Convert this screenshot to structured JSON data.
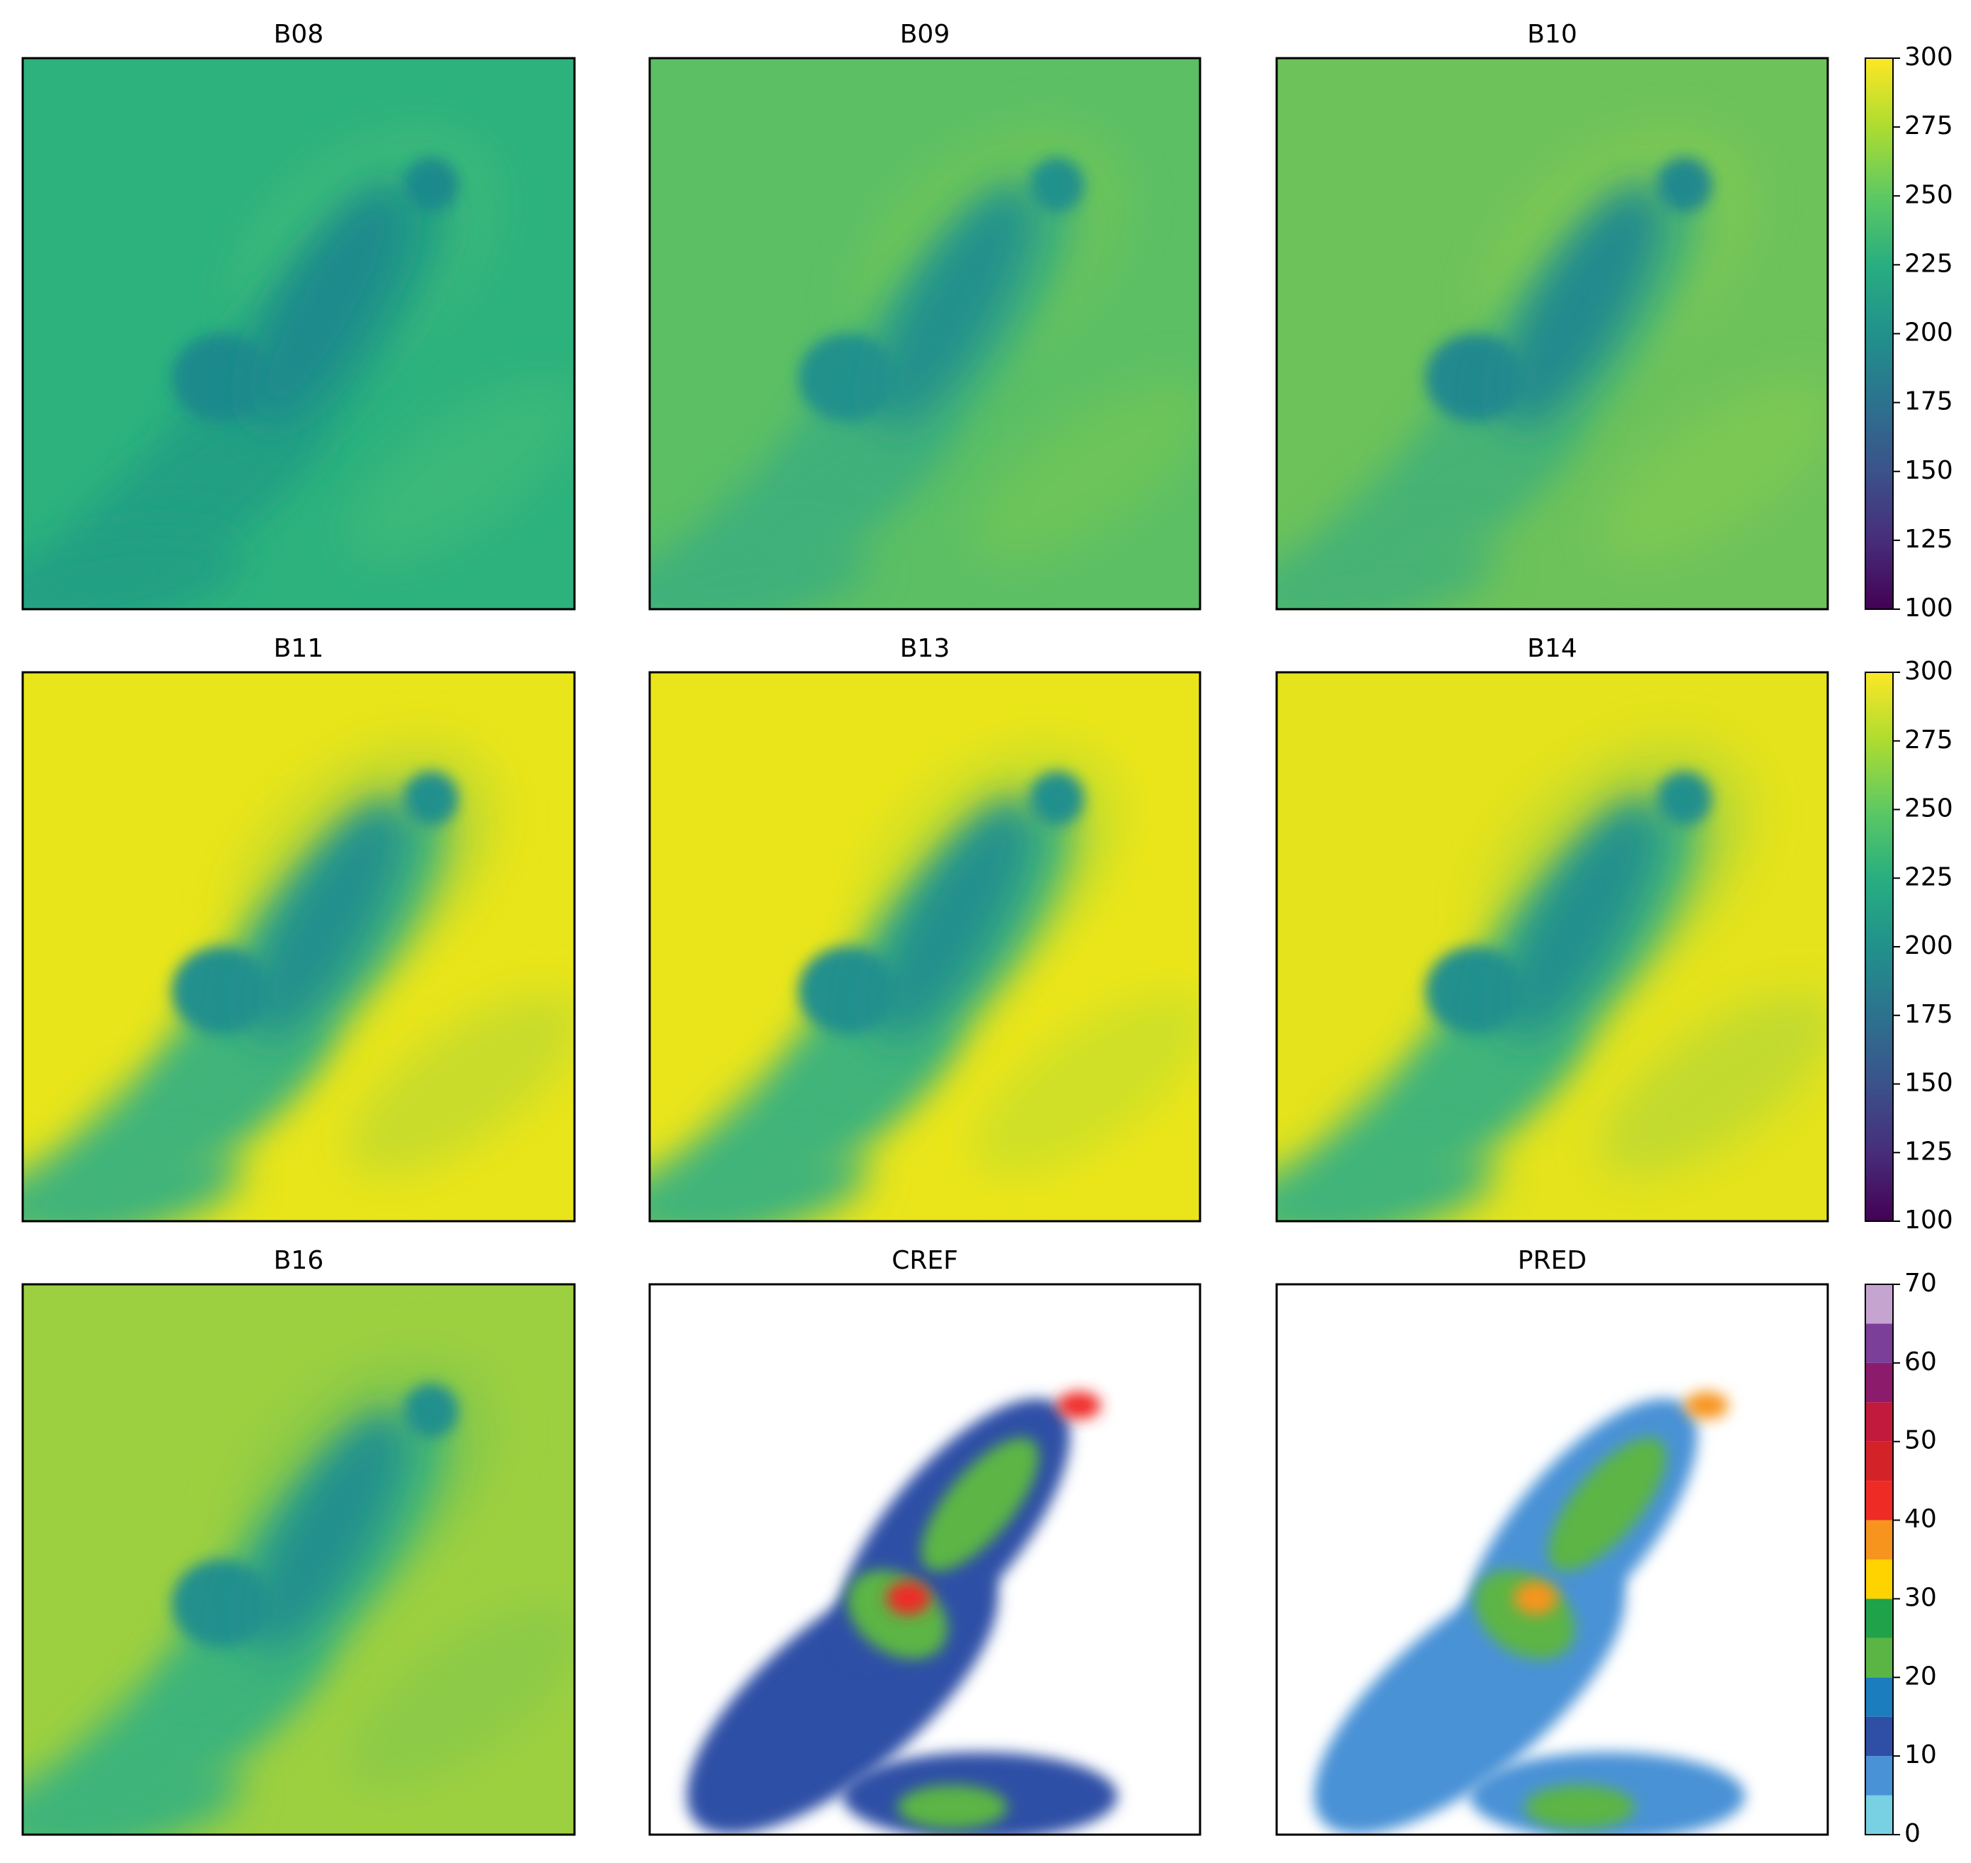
{
  "chart_data": [
    {
      "type": "image",
      "title": "B08"
    },
    {
      "type": "image",
      "title": "B09"
    },
    {
      "type": "image",
      "title": "B10"
    },
    {
      "type": "image",
      "title": "B11"
    },
    {
      "type": "image",
      "title": "B13"
    },
    {
      "type": "image",
      "title": "B14"
    },
    {
      "type": "image",
      "title": "B16"
    },
    {
      "type": "image",
      "title": "CREF"
    },
    {
      "type": "image",
      "title": "PRED"
    },
    {
      "type": "colorbar",
      "ylim": [
        100,
        300
      ],
      "yticks": [
        100,
        125,
        150,
        175,
        200,
        225,
        250,
        275,
        300
      ],
      "colors": [
        "#440154",
        "#472d7b",
        "#3b528b",
        "#2c728e",
        "#21918c",
        "#28ae80",
        "#5ec962",
        "#addc30",
        "#fde725"
      ]
    },
    {
      "type": "colorbar",
      "ylim": [
        100,
        300
      ],
      "yticks": [
        100,
        125,
        150,
        175,
        200,
        225,
        250,
        275,
        300
      ],
      "colors": [
        "#440154",
        "#472d7b",
        "#3b528b",
        "#2c728e",
        "#21918c",
        "#28ae80",
        "#5ec962",
        "#addc30",
        "#fde725"
      ]
    },
    {
      "type": "colorbar",
      "ylim": [
        0,
        70
      ],
      "yticks": [
        0,
        10,
        20,
        30,
        40,
        50,
        60,
        70
      ],
      "bounds": [
        0,
        5,
        10,
        15,
        20,
        25,
        30,
        35,
        40,
        45,
        50,
        55,
        60,
        65,
        70
      ],
      "colors": [
        "#78d0e3",
        "#4a92d6",
        "#2f4fa6",
        "#1b7dbd",
        "#5bb544",
        "#1fa24a",
        "#ffd300",
        "#f7941d",
        "#ef2b26",
        "#d42229",
        "#c21a3c",
        "#8c1b6b",
        "#7b3f99",
        "#c6a4d0"
      ]
    }
  ]
}
